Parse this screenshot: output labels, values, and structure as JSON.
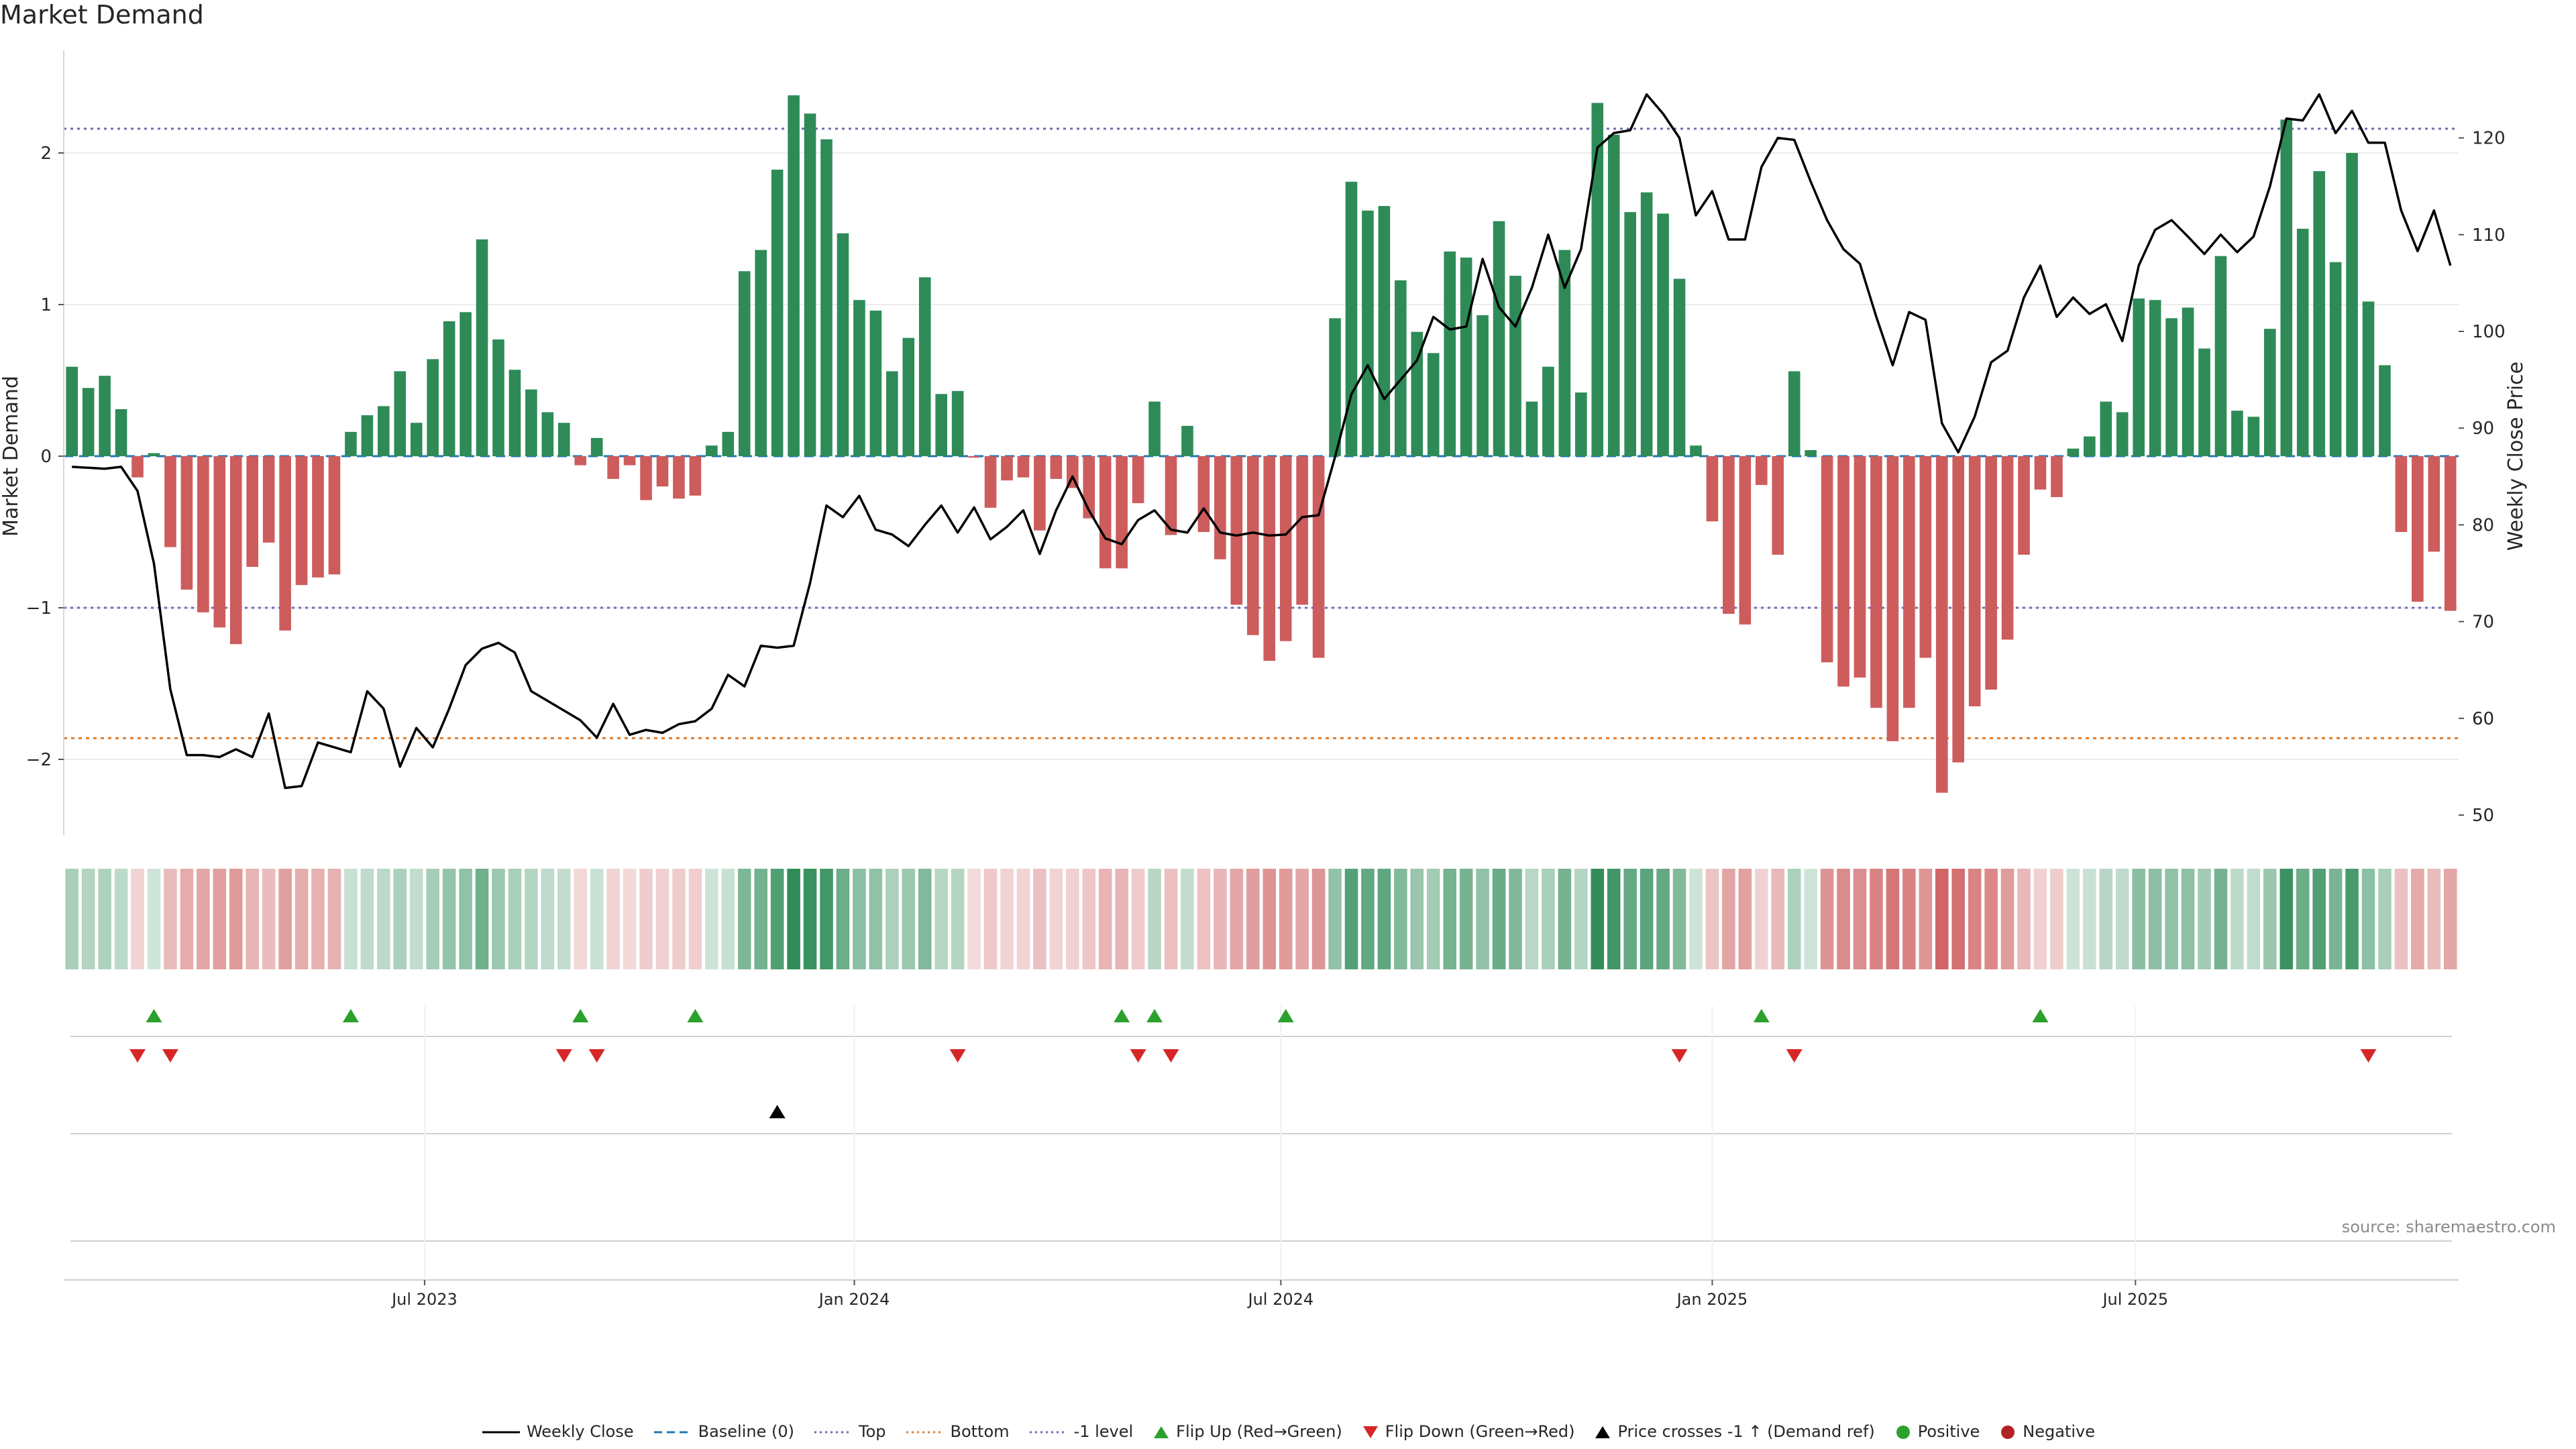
{
  "chart_data": {
    "type": "bar",
    "title": "Market Demand",
    "ylabel_left": "Market Demand",
    "ylabel_right": "Weekly Close Price",
    "ylim_left": [
      -2.5,
      2.6
    ],
    "ylim_right": [
      48,
      127
    ],
    "yticks_left": [
      -2,
      -1,
      0,
      1,
      2
    ],
    "yticks_left_labels": [
      "−2",
      "−1",
      "0",
      "1",
      "2"
    ],
    "yticks_right": [
      50,
      60,
      70,
      80,
      90,
      100,
      110,
      120
    ],
    "x_tick_labels": [
      {
        "label": "Jul 2023",
        "week": 21.5
      },
      {
        "label": "Jan 2024",
        "week": 47.7
      },
      {
        "label": "Jul 2024",
        "week": 73.7
      },
      {
        "label": "Jan 2025",
        "week": 100.0
      },
      {
        "label": "Jul 2025",
        "week": 125.8
      }
    ],
    "reference_lines": {
      "top": 2.16,
      "bottom": -1.86,
      "minus_one": -1.0,
      "baseline": 0
    },
    "demand": [
      0.59,
      0.45,
      0.53,
      0.31,
      -0.14,
      0.02,
      -0.6,
      -0.88,
      -1.03,
      -1.13,
      -1.24,
      -0.73,
      -0.57,
      -1.15,
      -0.85,
      -0.8,
      -0.78,
      0.16,
      0.27,
      0.33,
      0.56,
      0.22,
      0.64,
      0.89,
      0.95,
      1.43,
      0.77,
      0.57,
      0.44,
      0.29,
      0.22,
      -0.06,
      0.12,
      -0.15,
      -0.06,
      -0.29,
      -0.2,
      -0.28,
      -0.26,
      0.07,
      0.16,
      1.22,
      1.36,
      1.89,
      2.38,
      2.26,
      2.09,
      1.47,
      1.03,
      0.96,
      0.56,
      0.78,
      1.18,
      0.41,
      0.43,
      -0.01,
      -0.34,
      -0.16,
      -0.14,
      -0.49,
      -0.15,
      -0.21,
      -0.41,
      -0.74,
      -0.74,
      -0.31,
      0.36,
      -0.52,
      0.2,
      -0.5,
      -0.68,
      -0.98,
      -1.18,
      -1.35,
      -1.22,
      -0.98,
      -1.33,
      0.91,
      1.81,
      1.62,
      1.65,
      1.16,
      0.82,
      0.68,
      1.35,
      1.31,
      0.93,
      1.55,
      1.19,
      0.36,
      0.59,
      1.36,
      0.42,
      2.33,
      2.12,
      1.61,
      1.74,
      1.6,
      1.17,
      0.07,
      -0.43,
      -1.04,
      -1.11,
      -0.19,
      -0.65,
      0.56,
      0.04,
      -1.36,
      -1.52,
      -1.46,
      -1.66,
      -1.88,
      -1.66,
      -1.33,
      -2.22,
      -2.02,
      -1.65,
      -1.54,
      -1.21,
      -0.65,
      -0.22,
      -0.27,
      0.05,
      0.13,
      0.36,
      0.29,
      1.04,
      1.03,
      0.91,
      0.98,
      0.71,
      1.32,
      0.3,
      0.26,
      0.84,
      2.22,
      1.5,
      1.88,
      1.28,
      2.0,
      1.02,
      0.6,
      -0.5,
      -0.96,
      -0.63,
      -1.02
    ],
    "weekly_close": [
      86.0,
      85.9,
      85.8,
      86.0,
      83.5,
      76.0,
      63.0,
      56.2,
      56.2,
      56.0,
      56.8,
      56.0,
      60.5,
      52.8,
      53.0,
      57.5,
      57.0,
      56.5,
      62.8,
      61.0,
      55.0,
      59.0,
      57.0,
      61.0,
      65.5,
      67.2,
      67.8,
      66.8,
      62.8,
      61.8,
      60.8,
      59.8,
      58.0,
      61.5,
      58.3,
      58.8,
      58.5,
      59.4,
      59.7,
      61.0,
      64.5,
      63.3,
      67.5,
      67.3,
      67.5,
      74.0,
      82.0,
      80.8,
      83.0,
      79.5,
      79.0,
      77.8,
      80.0,
      82.0,
      79.2,
      81.8,
      78.5,
      79.8,
      81.5,
      77.0,
      81.5,
      85.0,
      81.5,
      78.6,
      78.0,
      80.5,
      81.5,
      79.5,
      79.2,
      81.7,
      79.2,
      78.9,
      79.2,
      78.9,
      79.0,
      80.8,
      81.0,
      87.0,
      93.5,
      96.5,
      93.0,
      95.0,
      97.0,
      101.5,
      100.2,
      100.5,
      107.5,
      102.5,
      100.5,
      104.5,
      110.0,
      104.5,
      108.5,
      119.0,
      120.5,
      120.8,
      124.5,
      122.5,
      120.0,
      112.0,
      114.5,
      109.5,
      109.5,
      117.0,
      120.0,
      119.8,
      115.5,
      111.5,
      108.5,
      107.0,
      101.5,
      96.5,
      102.0,
      101.2,
      90.5,
      87.5,
      91.2,
      96.8,
      98.0,
      103.5,
      106.8,
      101.5,
      103.5,
      101.8,
      102.8,
      99.0,
      106.8,
      110.5,
      111.5,
      109.8,
      108.0,
      110.0,
      108.2,
      109.8,
      115.0,
      122.0,
      121.8,
      124.5,
      120.5,
      122.8,
      119.5,
      119.5,
      112.5,
      108.3,
      112.5,
      106.8
    ],
    "flip_up_weeks": [
      5,
      17,
      31,
      38,
      64,
      66,
      74,
      103,
      120
    ],
    "flip_down_weeks": [
      4,
      6,
      30,
      32,
      54,
      65,
      67,
      98,
      105,
      140
    ],
    "price_cross_weeks": [
      43
    ],
    "strip_colors": {
      "positive": "#2e8b57",
      "negative": "#cd5c5c"
    },
    "colors": {
      "up_bar": "#2e8b57",
      "down_bar": "#cd5c5c",
      "flip_up": "#2ca02c",
      "flip_down": "#d62728",
      "cross": "#000000",
      "price_line": "#000000",
      "top_line": "#6b6bb6",
      "bottom_line": "#e07b2a",
      "baseline": "#1f77b4"
    },
    "legend": [
      {
        "label": "Weekly Close",
        "symbol": "line-solid",
        "color": "#000000"
      },
      {
        "label": "Baseline (0)",
        "symbol": "line-dash",
        "color": "#1f77b4"
      },
      {
        "label": "Top",
        "symbol": "line-dot",
        "color": "#6b6bb6"
      },
      {
        "label": "Bottom",
        "symbol": "line-dot",
        "color": "#e07b2a"
      },
      {
        "label": "-1 level",
        "symbol": "line-dot",
        "color": "#6b6bb6"
      },
      {
        "label": "Flip Up (Red→Green)",
        "symbol": "tri-up",
        "color": "#2ca02c"
      },
      {
        "label": "Flip Down (Green→Red)",
        "symbol": "tri-down",
        "color": "#d62728"
      },
      {
        "label": "Price crosses -1 ↑ (Demand ref)",
        "symbol": "tri-up",
        "color": "#000000"
      },
      {
        "label": "Positive",
        "symbol": "dot",
        "color": "#2ca02c"
      },
      {
        "label": "Negative",
        "symbol": "dot",
        "color": "#b22222"
      }
    ]
  },
  "source": "source: sharemaestro.com"
}
